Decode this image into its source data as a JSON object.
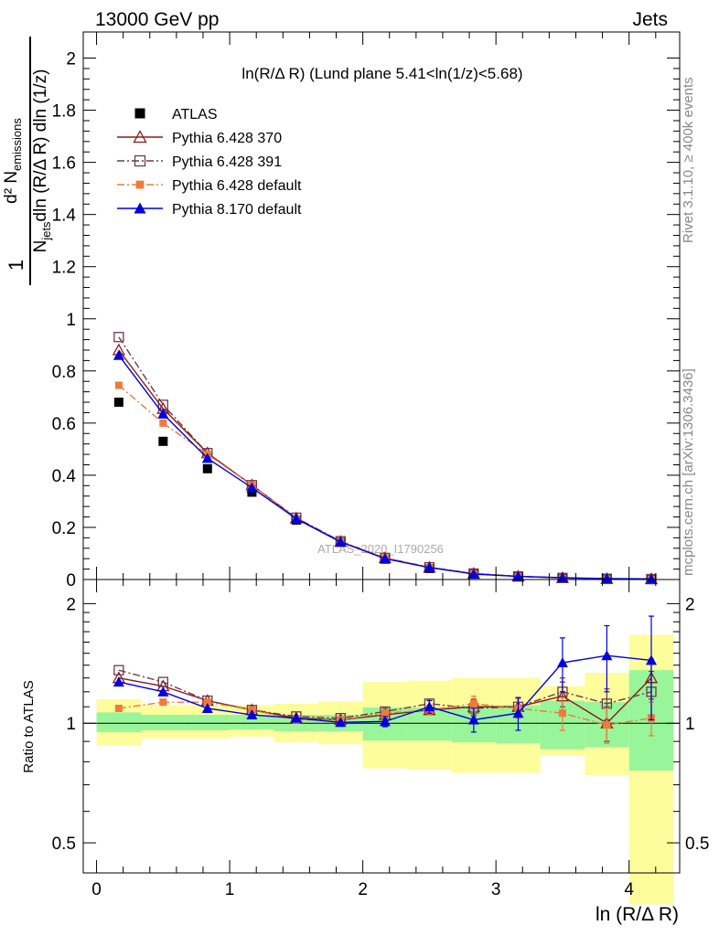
{
  "header": {
    "left": "13000 GeV pp",
    "right": "Jets"
  },
  "side_labels": {
    "rivet": "Rivet 3.1.10, ≥ 400k events",
    "mcplots": "mcplots.cern.ch [arXiv:1306.3436]"
  },
  "watermark": "ATLAS_2020_I1790256",
  "main_ylabel": {
    "line1": "d² N",
    "line1_sub": "emissions",
    "line2_pre": "N",
    "line2_sub": "jets",
    "line2_post": "dln (R/Δ R) dln (1/z)",
    "numerator": "1"
  },
  "ratio_ylabel": "Ratio to ATLAS",
  "chart_data": [
    {
      "type": "scatter",
      "title": "ln(R/Δ R) (Lund plane 5.41<ln(1/z)<5.68)",
      "xlabel": "ln (R/Δ R)",
      "xlim": [
        -0.1,
        4.38
      ],
      "ylim": [
        0,
        2.1
      ],
      "yticks": [
        "0",
        "0.2",
        "0.4",
        "0.6",
        "0.8",
        "1",
        "1.2",
        "1.4",
        "1.6",
        "1.8",
        "2"
      ],
      "legend_position": "top-left",
      "x": [
        0.167,
        0.5,
        0.833,
        1.167,
        1.5,
        1.833,
        2.167,
        2.5,
        2.833,
        3.167,
        3.5,
        3.833,
        4.167
      ],
      "series": [
        {
          "name": "ATLAS",
          "color": "#000000",
          "marker": "square-filled",
          "line": "none",
          "values": [
            0.68,
            0.53,
            0.425,
            0.335,
            0.228,
            0.143,
            0.078,
            0.042,
            0.021,
            0.011,
            0.005,
            0.0025,
            0.0015
          ]
        },
        {
          "name": "Pythia 6.428 370",
          "color": "#8b1a1a",
          "marker": "triangle-open",
          "line": "solid",
          "values": [
            0.88,
            0.655,
            0.485,
            0.362,
            0.235,
            0.145,
            0.082,
            0.046,
            0.023,
            0.012,
            0.006,
            0.0025,
            0.002
          ]
        },
        {
          "name": "Pythia 6.428 391",
          "color": "#6e3a4a",
          "marker": "square-open",
          "line": "dashdot",
          "values": [
            0.93,
            0.67,
            0.485,
            0.362,
            0.237,
            0.147,
            0.083,
            0.047,
            0.023,
            0.012,
            0.006,
            0.0028,
            0.0018
          ]
        },
        {
          "name": "Pythia 6.428 default",
          "color": "#f07a3a",
          "marker": "square-filled-small",
          "line": "dashdot",
          "values": [
            0.745,
            0.6,
            0.48,
            0.362,
            0.232,
            0.145,
            0.083,
            0.046,
            0.023,
            0.012,
            0.0055,
            0.0025,
            0.0016
          ]
        },
        {
          "name": "Pythia 8.170 default",
          "color": "#0000e0",
          "marker": "triangle-filled",
          "line": "solid",
          "values": [
            0.86,
            0.635,
            0.465,
            0.352,
            0.233,
            0.144,
            0.08,
            0.046,
            0.021,
            0.012,
            0.007,
            0.0037,
            0.0022
          ]
        }
      ]
    },
    {
      "type": "line",
      "ylabel": "Ratio to ATLAS",
      "xlabel": "ln (R/Δ R)",
      "xlim": [
        -0.1,
        4.38
      ],
      "ylim": [
        0.42,
        2.3
      ],
      "log_y": true,
      "xticks": [
        "0",
        "1",
        "2",
        "3",
        "4"
      ],
      "yticks": [
        "0.5",
        "1",
        "2"
      ],
      "bin_edges": [
        0,
        0.333,
        0.667,
        1.0,
        1.333,
        1.667,
        2.0,
        2.333,
        2.667,
        3.0,
        3.333,
        3.667,
        4.0,
        4.333
      ],
      "band_stat": {
        "color": "#99f599",
        "lo": [
          0.95,
          0.96,
          0.96,
          0.965,
          0.955,
          0.955,
          0.905,
          0.905,
          0.895,
          0.89,
          0.86,
          0.87,
          0.76
        ],
        "hi": [
          1.065,
          1.05,
          1.05,
          1.05,
          1.05,
          1.05,
          1.095,
          1.095,
          1.105,
          1.11,
          1.14,
          1.13,
          1.36
        ]
      },
      "band_total": {
        "color": "#fdfd9c",
        "lo": [
          0.88,
          0.915,
          0.915,
          0.925,
          0.895,
          0.885,
          0.77,
          0.765,
          0.75,
          0.75,
          0.83,
          0.74,
          0.35
        ],
        "hi": [
          1.15,
          1.11,
          1.11,
          1.11,
          1.12,
          1.135,
          1.27,
          1.28,
          1.3,
          1.3,
          1.24,
          1.34,
          1.67
        ]
      },
      "x": [
        0.167,
        0.5,
        0.833,
        1.167,
        1.5,
        1.833,
        2.167,
        2.5,
        2.833,
        3.167,
        3.5,
        3.833,
        4.167
      ],
      "series": [
        {
          "name": "Pythia 6.428 370",
          "color": "#8b1a1a",
          "values": [
            1.3,
            1.24,
            1.14,
            1.08,
            1.03,
            1.02,
            1.05,
            1.08,
            1.1,
            1.1,
            1.17,
            1.0,
            1.3
          ],
          "errors": [
            0.01,
            0.01,
            0.01,
            0.01,
            0.01,
            0.01,
            0.02,
            0.03,
            0.05,
            0.06,
            0.1,
            0.1,
            0.15
          ]
        },
        {
          "name": "Pythia 6.428 391",
          "color": "#6e3a4a",
          "values": [
            1.36,
            1.27,
            1.14,
            1.08,
            1.04,
            1.03,
            1.07,
            1.12,
            1.09,
            1.1,
            1.2,
            1.12,
            1.2
          ],
          "errors": [
            0.01,
            0.01,
            0.01,
            0.01,
            0.01,
            0.01,
            0.02,
            0.03,
            0.05,
            0.06,
            0.1,
            0.1,
            0.15
          ]
        },
        {
          "name": "Pythia 6.428 default",
          "color": "#f07a3a",
          "values": [
            1.09,
            1.13,
            1.13,
            1.08,
            1.02,
            1.02,
            1.06,
            1.08,
            1.12,
            1.09,
            1.06,
            0.99,
            1.03
          ],
          "errors": [
            0.01,
            0.01,
            0.01,
            0.01,
            0.01,
            0.01,
            0.02,
            0.03,
            0.05,
            0.06,
            0.1,
            0.1,
            0.1
          ]
        },
        {
          "name": "Pythia 8.170 default",
          "color": "#0000e0",
          "values": [
            1.27,
            1.2,
            1.09,
            1.05,
            1.03,
            1.005,
            1.01,
            1.1,
            1.02,
            1.06,
            1.42,
            1.48,
            1.44
          ],
          "errors": [
            0.01,
            0.01,
            0.01,
            0.01,
            0.01,
            0.01,
            0.03,
            0.04,
            0.07,
            0.1,
            0.22,
            0.28,
            0.42
          ]
        }
      ]
    }
  ]
}
